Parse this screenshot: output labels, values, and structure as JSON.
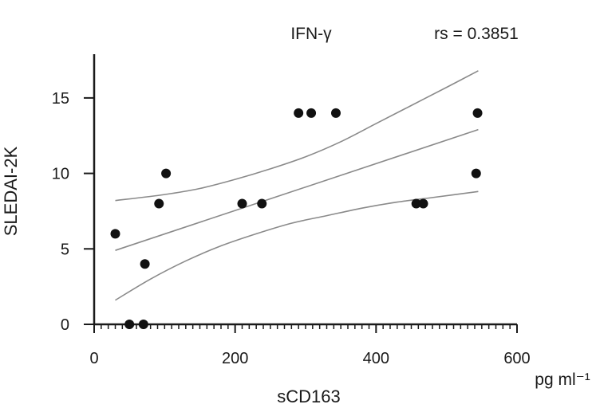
{
  "chart_data": {
    "type": "scatter",
    "title": "IFN-γ",
    "annotation": "rs = 0.3851",
    "xlabel": "sCD163",
    "x_unit_label": "pg ml⁻¹",
    "ylabel": "SLEDAI-2K",
    "xlim": [
      0,
      600
    ],
    "ylim": [
      0,
      17
    ],
    "x_ticks": [
      0,
      200,
      400,
      600
    ],
    "y_ticks": [
      0,
      5,
      10,
      15
    ],
    "x_minor_step": 10,
    "grid": false,
    "points": [
      {
        "x": 30,
        "y": 6
      },
      {
        "x": 50,
        "y": 0
      },
      {
        "x": 70,
        "y": 0
      },
      {
        "x": 72,
        "y": 4
      },
      {
        "x": 92,
        "y": 8
      },
      {
        "x": 102,
        "y": 10
      },
      {
        "x": 210,
        "y": 8
      },
      {
        "x": 238,
        "y": 8
      },
      {
        "x": 290,
        "y": 14
      },
      {
        "x": 308,
        "y": 14
      },
      {
        "x": 343,
        "y": 14
      },
      {
        "x": 457,
        "y": 8
      },
      {
        "x": 467,
        "y": 8
      },
      {
        "x": 542,
        "y": 10
      },
      {
        "x": 544,
        "y": 14
      }
    ],
    "fit_line": [
      {
        "x": 30,
        "y": 4.9
      },
      {
        "x": 545,
        "y": 12.9
      }
    ],
    "ci_upper": [
      {
        "x": 30,
        "y": 8.2
      },
      {
        "x": 100,
        "y": 8.6
      },
      {
        "x": 150,
        "y": 9.0
      },
      {
        "x": 200,
        "y": 9.6
      },
      {
        "x": 250,
        "y": 10.3
      },
      {
        "x": 300,
        "y": 11.1
      },
      {
        "x": 350,
        "y": 12.1
      },
      {
        "x": 400,
        "y": 13.3
      },
      {
        "x": 450,
        "y": 14.5
      },
      {
        "x": 500,
        "y": 15.7
      },
      {
        "x": 545,
        "y": 16.8
      }
    ],
    "ci_lower": [
      {
        "x": 30,
        "y": 1.6
      },
      {
        "x": 80,
        "y": 3.0
      },
      {
        "x": 130,
        "y": 4.2
      },
      {
        "x": 180,
        "y": 5.2
      },
      {
        "x": 230,
        "y": 6.0
      },
      {
        "x": 280,
        "y": 6.7
      },
      {
        "x": 330,
        "y": 7.2
      },
      {
        "x": 380,
        "y": 7.7
      },
      {
        "x": 430,
        "y": 8.1
      },
      {
        "x": 480,
        "y": 8.4
      },
      {
        "x": 545,
        "y": 8.8
      }
    ],
    "colors": {
      "points": "#111111",
      "axes": "#1a1a1a",
      "curves": "#8a8a8a"
    }
  }
}
